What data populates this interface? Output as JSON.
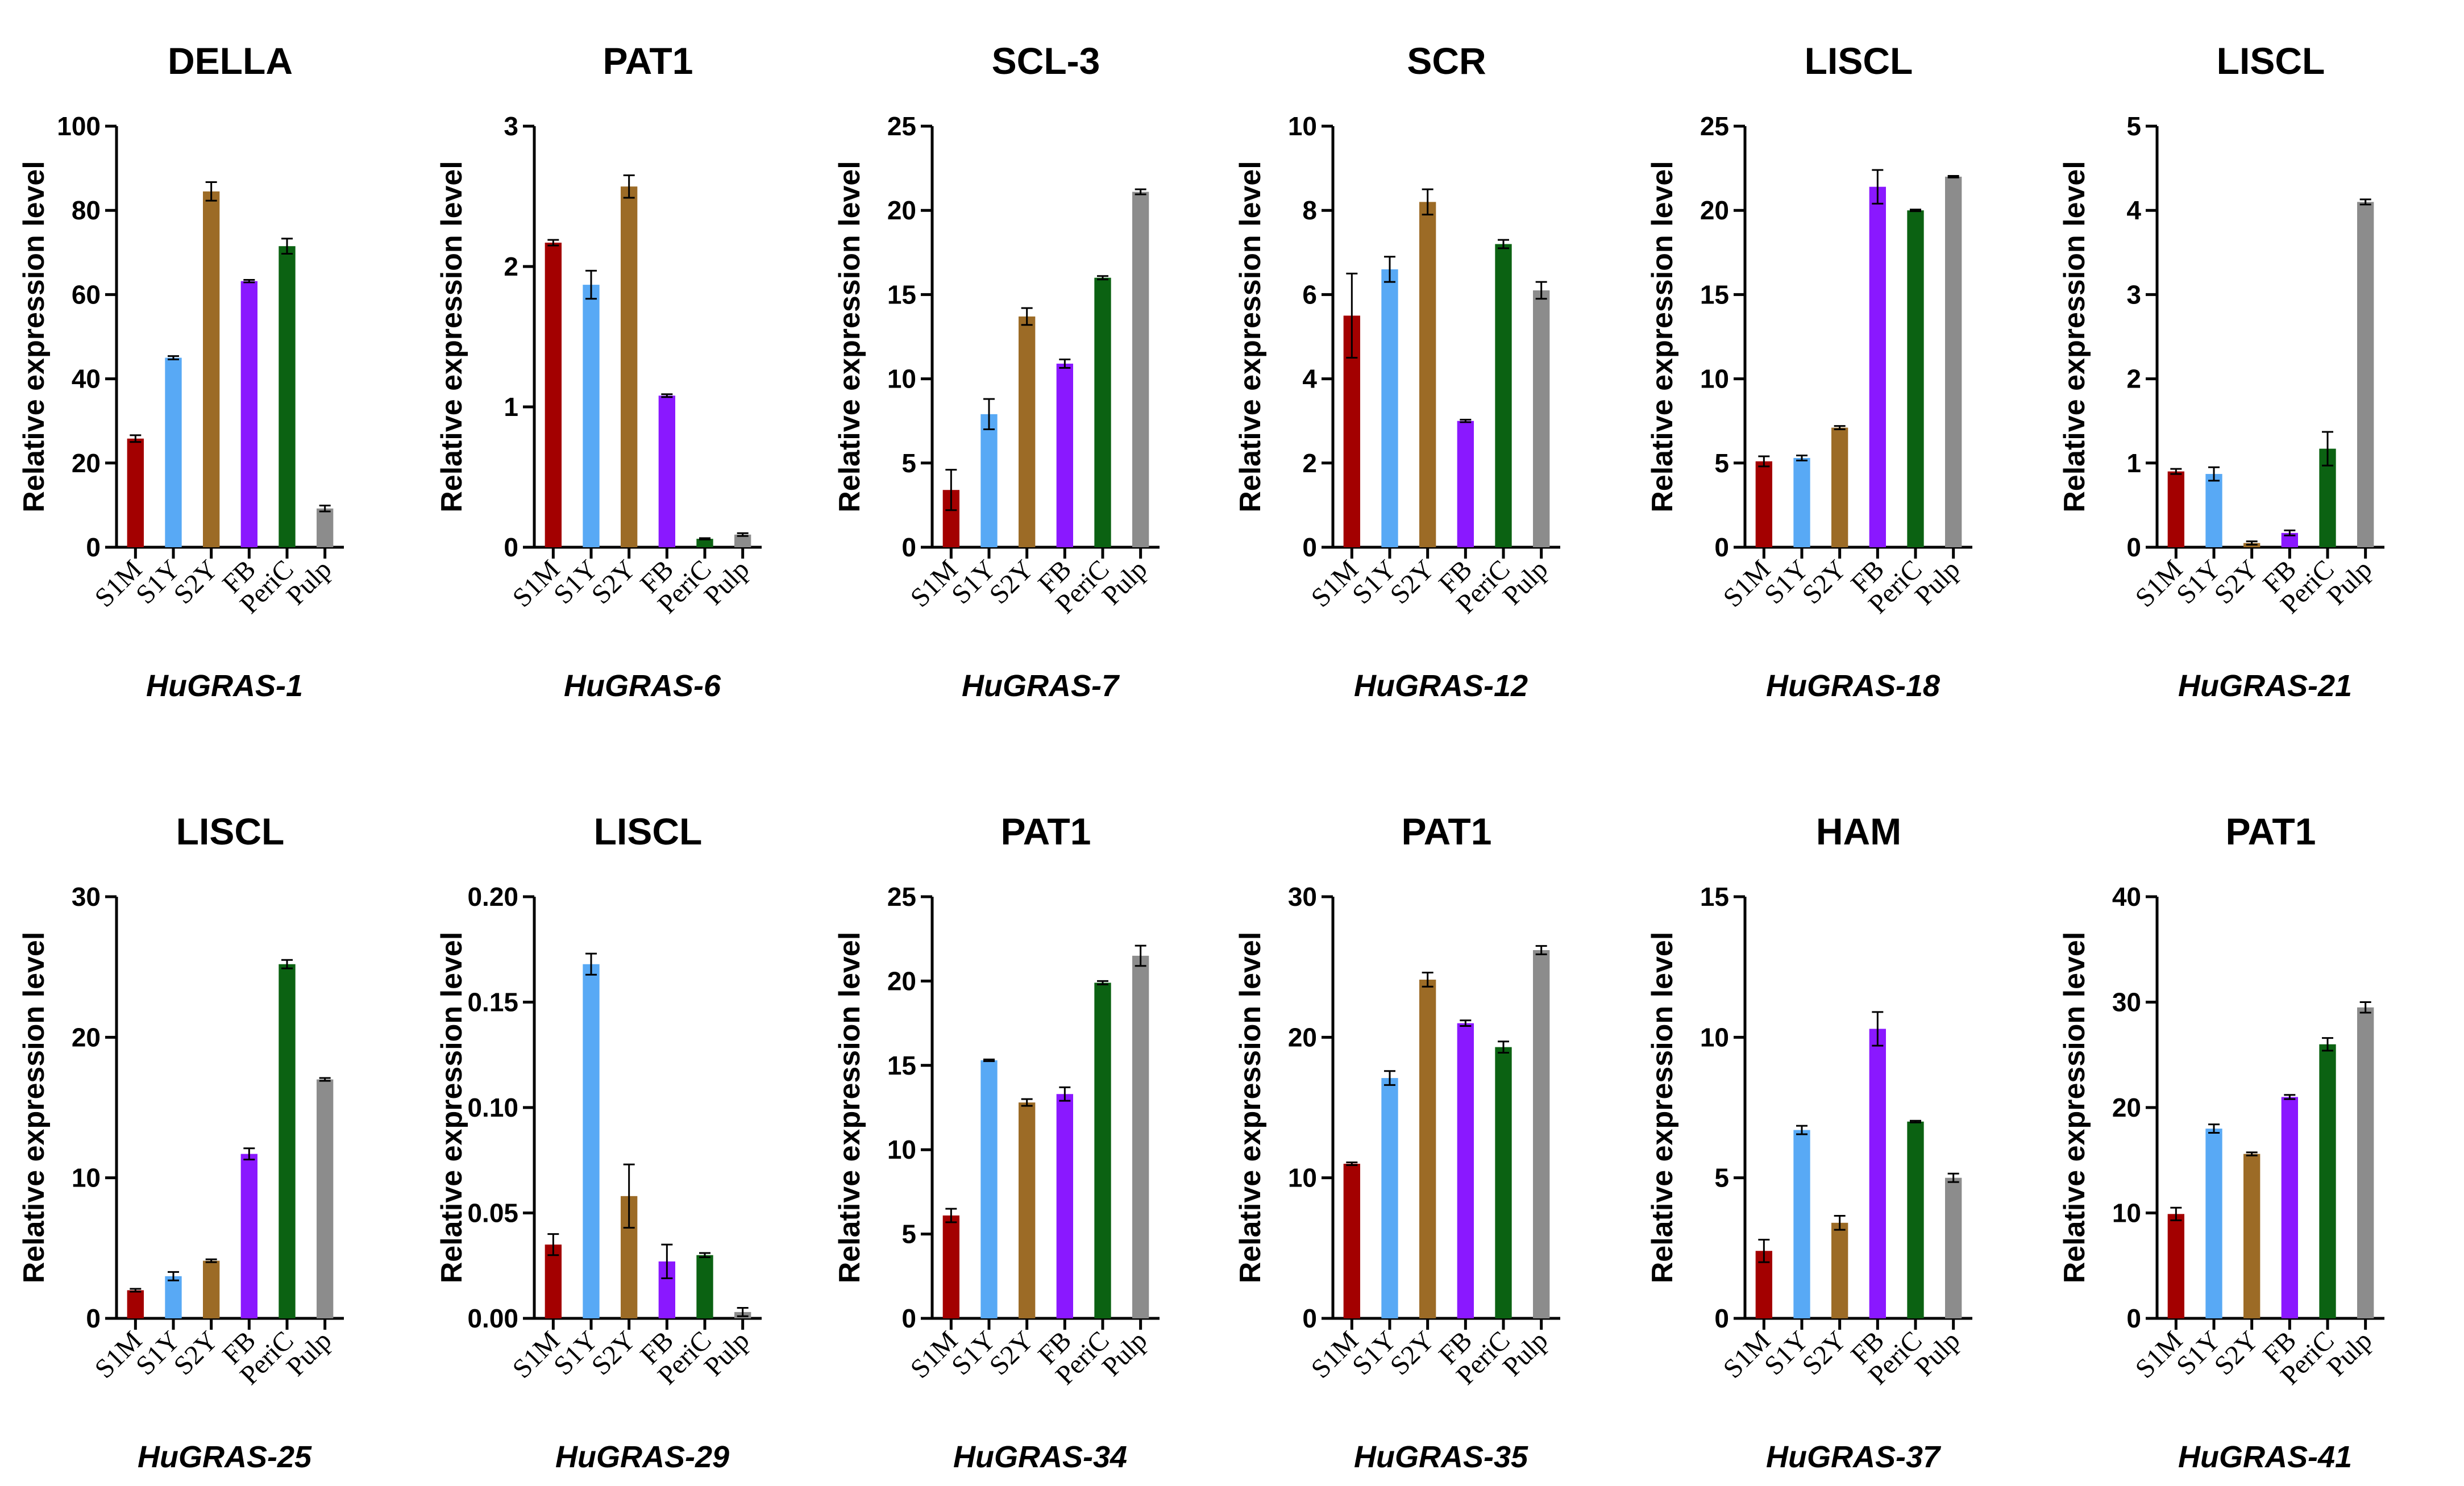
{
  "chart_data": [
    {
      "type": "bar",
      "title": "DELLA",
      "gene": "HuGRAS-1",
      "ylabel": "Relative expression level",
      "categories": [
        "S1M",
        "S1Y",
        "S2Y",
        "FB",
        "PeriC",
        "Pulp"
      ],
      "values": [
        25.8,
        45,
        84.5,
        63.2,
        71.5,
        9.2
      ],
      "errors": [
        0.8,
        0.4,
        2.2,
        0.3,
        1.8,
        0.7
      ],
      "ylim": [
        0,
        100
      ],
      "yticks": [
        "0",
        "20",
        "40",
        "60",
        "80",
        "100"
      ],
      "colors": [
        "#a30000",
        "#58a9f5",
        "#9c6b26",
        "#8a18ff",
        "#0b6212",
        "#8c8c8c"
      ]
    },
    {
      "type": "bar",
      "title": "PAT1",
      "gene": "HuGRAS-6",
      "ylabel": "Relative expression level",
      "categories": [
        "S1M",
        "S1Y",
        "S2Y",
        "FB",
        "PeriC",
        "Pulp"
      ],
      "values": [
        2.17,
        1.87,
        2.57,
        1.08,
        0.06,
        0.09
      ],
      "errors": [
        0.02,
        0.1,
        0.08,
        0.01,
        0.005,
        0.01
      ],
      "ylim": [
        0,
        3
      ],
      "yticks": [
        "0",
        "1",
        "2",
        "3"
      ],
      "colors": [
        "#a30000",
        "#58a9f5",
        "#9c6b26",
        "#8a18ff",
        "#0b6212",
        "#8c8c8c"
      ]
    },
    {
      "type": "bar",
      "title": "SCL-3",
      "gene": "HuGRAS-7",
      "ylabel": "Relative expression level",
      "categories": [
        "S1M",
        "S1Y",
        "S2Y",
        "FB",
        "PeriC",
        "Pulp"
      ],
      "values": [
        3.4,
        7.9,
        13.7,
        10.9,
        16,
        21.1
      ],
      "errors": [
        1.2,
        0.9,
        0.5,
        0.25,
        0.1,
        0.15
      ],
      "ylim": [
        0,
        25
      ],
      "yticks": [
        "0",
        "5",
        "10",
        "15",
        "20",
        "25"
      ],
      "colors": [
        "#a30000",
        "#58a9f5",
        "#9c6b26",
        "#8a18ff",
        "#0b6212",
        "#8c8c8c"
      ]
    },
    {
      "type": "bar",
      "title": "SCR",
      "gene": "HuGRAS-12",
      "ylabel": "Relative expression level",
      "categories": [
        "S1M",
        "S1Y",
        "S2Y",
        "FB",
        "PeriC",
        "Pulp"
      ],
      "values": [
        5.5,
        6.6,
        8.2,
        3,
        7.2,
        6.1
      ],
      "errors": [
        1,
        0.3,
        0.3,
        0.03,
        0.1,
        0.2
      ],
      "ylim": [
        0,
        10
      ],
      "yticks": [
        "0",
        "2",
        "4",
        "6",
        "8",
        "10"
      ],
      "colors": [
        "#a30000",
        "#58a9f5",
        "#9c6b26",
        "#8a18ff",
        "#0b6212",
        "#8c8c8c"
      ]
    },
    {
      "type": "bar",
      "title": "LISCL",
      "gene": "HuGRAS-18",
      "ylabel": "Relative expression level",
      "categories": [
        "S1M",
        "S1Y",
        "S2Y",
        "FB",
        "PeriC",
        "Pulp"
      ],
      "values": [
        5.1,
        5.3,
        7.1,
        21.4,
        20,
        22
      ],
      "errors": [
        0.3,
        0.15,
        0.1,
        1,
        0.05,
        0.05
      ],
      "ylim": [
        0,
        25
      ],
      "yticks": [
        "0",
        "5",
        "10",
        "15",
        "20",
        "25"
      ],
      "colors": [
        "#a30000",
        "#58a9f5",
        "#9c6b26",
        "#8a18ff",
        "#0b6212",
        "#8c8c8c"
      ]
    },
    {
      "type": "bar",
      "title": "LISCL",
      "gene": "HuGRAS-21",
      "ylabel": "Relative expression level",
      "categories": [
        "S1M",
        "S1Y",
        "S2Y",
        "FB",
        "PeriC",
        "Pulp"
      ],
      "values": [
        0.9,
        0.87,
        0.05,
        0.17,
        1.17,
        4.1
      ],
      "errors": [
        0.03,
        0.08,
        0.02,
        0.03,
        0.2,
        0.03
      ],
      "ylim": [
        0,
        5
      ],
      "yticks": [
        "0",
        "1",
        "2",
        "3",
        "4",
        "5"
      ],
      "colors": [
        "#a30000",
        "#58a9f5",
        "#9c6b26",
        "#8a18ff",
        "#0b6212",
        "#8c8c8c"
      ]
    },
    {
      "type": "bar",
      "title": "LISCL",
      "gene": "HuGRAS-25",
      "ylabel": "Relative expression level",
      "categories": [
        "S1M",
        "S1Y",
        "S2Y",
        "FB",
        "PeriC",
        "Pulp"
      ],
      "values": [
        2,
        3,
        4.1,
        11.7,
        25.2,
        17
      ],
      "errors": [
        0.1,
        0.3,
        0.1,
        0.4,
        0.3,
        0.1
      ],
      "ylim": [
        0,
        30
      ],
      "yticks": [
        "0",
        "10",
        "20",
        "30"
      ],
      "colors": [
        "#a30000",
        "#58a9f5",
        "#9c6b26",
        "#8a18ff",
        "#0b6212",
        "#8c8c8c"
      ]
    },
    {
      "type": "bar",
      "title": "LISCL",
      "gene": "HuGRAS-29",
      "ylabel": "Relative expression level",
      "categories": [
        "S1M",
        "S1Y",
        "S2Y",
        "FB",
        "PeriC",
        "Pulp"
      ],
      "values": [
        0.035,
        0.168,
        0.058,
        0.027,
        0.03,
        0.003
      ],
      "errors": [
        0.005,
        0.005,
        0.015,
        0.008,
        0.001,
        0.002
      ],
      "ylim": [
        0,
        0.2
      ],
      "yticks": [
        "0.00",
        "0.05",
        "0.10",
        "0.15",
        "0.20"
      ],
      "colors": [
        "#a30000",
        "#58a9f5",
        "#9c6b26",
        "#8a18ff",
        "#0b6212",
        "#8c8c8c"
      ]
    },
    {
      "type": "bar",
      "title": "PAT1",
      "gene": "HuGRAS-34",
      "ylabel": "Relative expression level",
      "categories": [
        "S1M",
        "S1Y",
        "S2Y",
        "FB",
        "PeriC",
        "Pulp"
      ],
      "values": [
        6.1,
        15.3,
        12.8,
        13.3,
        19.9,
        21.5
      ],
      "errors": [
        0.4,
        0.05,
        0.2,
        0.4,
        0.1,
        0.6
      ],
      "ylim": [
        0,
        25
      ],
      "yticks": [
        "0",
        "5",
        "10",
        "15",
        "20",
        "25"
      ],
      "colors": [
        "#a30000",
        "#58a9f5",
        "#9c6b26",
        "#8a18ff",
        "#0b6212",
        "#8c8c8c"
      ]
    },
    {
      "type": "bar",
      "title": "PAT1",
      "gene": "HuGRAS-35",
      "ylabel": "Relative expression level",
      "categories": [
        "S1M",
        "S1Y",
        "S2Y",
        "FB",
        "PeriC",
        "Pulp"
      ],
      "values": [
        11,
        17.1,
        24.1,
        21,
        19.3,
        26.2
      ],
      "errors": [
        0.1,
        0.5,
        0.5,
        0.2,
        0.4,
        0.3
      ],
      "ylim": [
        0,
        30
      ],
      "yticks": [
        "0",
        "10",
        "20",
        "30"
      ],
      "colors": [
        "#a30000",
        "#58a9f5",
        "#9c6b26",
        "#8a18ff",
        "#0b6212",
        "#8c8c8c"
      ]
    },
    {
      "type": "bar",
      "title": "HAM",
      "gene": "HuGRAS-37",
      "ylabel": "Relative expression level",
      "categories": [
        "S1M",
        "S1Y",
        "S2Y",
        "FB",
        "PeriC",
        "Pulp"
      ],
      "values": [
        2.4,
        6.7,
        3.4,
        10.3,
        7,
        5
      ],
      "errors": [
        0.4,
        0.15,
        0.25,
        0.6,
        0.03,
        0.15
      ],
      "ylim": [
        0,
        15
      ],
      "yticks": [
        "0",
        "5",
        "10",
        "15"
      ],
      "colors": [
        "#a30000",
        "#58a9f5",
        "#9c6b26",
        "#8a18ff",
        "#0b6212",
        "#8c8c8c"
      ]
    },
    {
      "type": "bar",
      "title": "PAT1",
      "gene": "HuGRAS-41",
      "ylabel": "Relative expression level",
      "categories": [
        "S1M",
        "S1Y",
        "S2Y",
        "FB",
        "PeriC",
        "Pulp"
      ],
      "values": [
        9.9,
        18,
        15.6,
        21,
        26,
        29.5
      ],
      "errors": [
        0.6,
        0.4,
        0.15,
        0.2,
        0.6,
        0.5
      ],
      "ylim": [
        0,
        40
      ],
      "yticks": [
        "0",
        "10",
        "20",
        "30",
        "40"
      ],
      "colors": [
        "#a30000",
        "#58a9f5",
        "#9c6b26",
        "#8a18ff",
        "#0b6212",
        "#8c8c8c"
      ]
    }
  ]
}
